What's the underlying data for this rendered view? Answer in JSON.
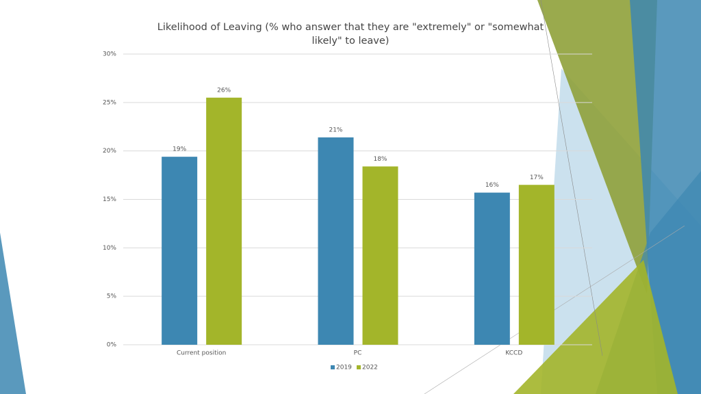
{
  "chart_data": {
    "type": "bar",
    "title": "Likelihood of Leaving (% who answer that they are \"extremely\" or \"somewhat likely\" to leave)",
    "categories": [
      "Current position",
      "PC",
      "KCCD"
    ],
    "series": [
      {
        "name": "2019",
        "color": "#3d87b2",
        "values": [
          19.4,
          21.4,
          15.7
        ],
        "value_labels": [
          "19%",
          "21%",
          "16%"
        ]
      },
      {
        "name": "2022",
        "color": "#a3b52a",
        "values": [
          25.5,
          18.4,
          16.5
        ],
        "value_labels": [
          "26%",
          "18%",
          "17%"
        ]
      }
    ],
    "ylim": [
      0,
      30
    ],
    "yticks": [
      {
        "value": 0,
        "label": "0%"
      },
      {
        "value": 5,
        "label": "5%"
      },
      {
        "value": 10,
        "label": "10%"
      },
      {
        "value": 15,
        "label": "15%"
      },
      {
        "value": 20,
        "label": "20%"
      },
      {
        "value": 25,
        "label": "25%"
      },
      {
        "value": 30,
        "label": "30%"
      }
    ],
    "grid": true,
    "legend": "bottom"
  }
}
